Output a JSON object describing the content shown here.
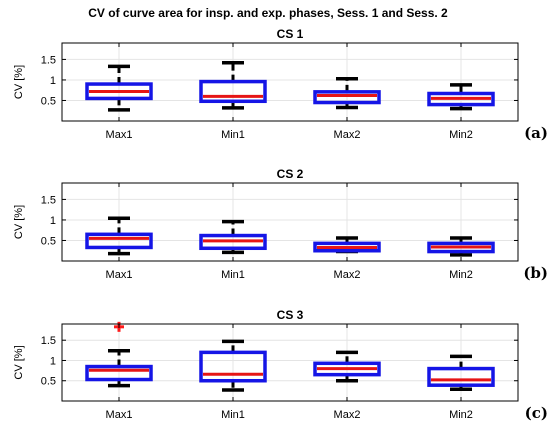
{
  "figure_title": "CV of curve area for insp. and exp. phases, Sess. 1 and Sess. 2",
  "colors": {
    "box": "#1515e6",
    "median": "#e61515",
    "whisker": "#000000",
    "grid": "#e4e4e4",
    "outlier": "#ff1a1a"
  },
  "chart_data": [
    {
      "type": "box",
      "title": "CS 1",
      "panel_label": "(a)",
      "ylabel": "CV [%]",
      "ylim": [
        0,
        1.9
      ],
      "yticks": [
        0.5,
        1,
        1.5
      ],
      "yticklabels": [
        "0.5",
        "1",
        "1.5"
      ],
      "grid": true,
      "categories": [
        "Max1",
        "Min1",
        "Max2",
        "Min2"
      ],
      "boxes": [
        {
          "whislo": 0.27,
          "q1": 0.55,
          "med": 0.72,
          "q3": 0.9,
          "whishi": 1.33,
          "fliers": []
        },
        {
          "whislo": 0.32,
          "q1": 0.48,
          "med": 0.6,
          "q3": 0.96,
          "whishi": 1.42,
          "fliers": []
        },
        {
          "whislo": 0.33,
          "q1": 0.45,
          "med": 0.62,
          "q3": 0.71,
          "whishi": 1.03,
          "fliers": []
        },
        {
          "whislo": 0.3,
          "q1": 0.4,
          "med": 0.55,
          "q3": 0.67,
          "whishi": 0.88,
          "fliers": []
        }
      ]
    },
    {
      "type": "box",
      "title": "CS 2",
      "panel_label": "(b)",
      "ylabel": "CV [%]",
      "ylim": [
        0,
        1.9
      ],
      "yticks": [
        0.5,
        1,
        1.5
      ],
      "yticklabels": [
        "0.5",
        "1",
        "1.5"
      ],
      "grid": true,
      "categories": [
        "Max1",
        "Min1",
        "Max2",
        "Min2"
      ],
      "boxes": [
        {
          "whislo": 0.18,
          "q1": 0.33,
          "med": 0.55,
          "q3": 0.65,
          "whishi": 1.04,
          "fliers": []
        },
        {
          "whislo": 0.21,
          "q1": 0.31,
          "med": 0.49,
          "q3": 0.62,
          "whishi": 0.96,
          "fliers": []
        },
        {
          "whislo": 0.23,
          "q1": 0.25,
          "med": 0.33,
          "q3": 0.43,
          "whishi": 0.56,
          "fliers": []
        },
        {
          "whislo": 0.15,
          "q1": 0.23,
          "med": 0.34,
          "q3": 0.43,
          "whishi": 0.56,
          "fliers": []
        }
      ]
    },
    {
      "type": "box",
      "title": "CS 3",
      "panel_label": "(c)",
      "ylabel": "CV [%]",
      "ylim": [
        0,
        1.9
      ],
      "yticks": [
        0.5,
        1,
        1.5
      ],
      "yticklabels": [
        "0.5",
        "1",
        "1.5"
      ],
      "grid": true,
      "categories": [
        "Max1",
        "Min1",
        "Max2",
        "Min2"
      ],
      "boxes": [
        {
          "whislo": 0.38,
          "q1": 0.53,
          "med": 0.76,
          "q3": 0.85,
          "whishi": 1.24,
          "fliers": [
            1.83
          ]
        },
        {
          "whislo": 0.27,
          "q1": 0.5,
          "med": 0.66,
          "q3": 1.2,
          "whishi": 1.47,
          "fliers": []
        },
        {
          "whislo": 0.5,
          "q1": 0.65,
          "med": 0.8,
          "q3": 0.93,
          "whishi": 1.2,
          "fliers": []
        },
        {
          "whislo": 0.29,
          "q1": 0.39,
          "med": 0.52,
          "q3": 0.8,
          "whishi": 1.1,
          "fliers": []
        }
      ]
    }
  ]
}
